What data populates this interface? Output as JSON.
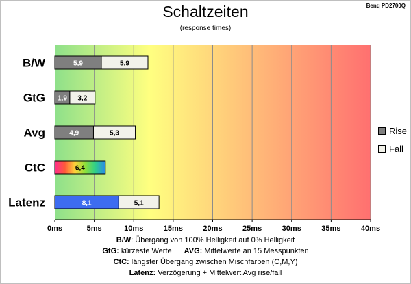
{
  "header": {
    "title": "Schaltzeiten",
    "subtitle": "(response times)",
    "model": "Benq PD2700Q"
  },
  "legend": {
    "rise": "Rise",
    "fall": "Fall"
  },
  "colors": {
    "rise": "#7f7f7f",
    "fall": "#f2f2ea",
    "latenz_rise": "#3d6cf0",
    "gradient_start": "#8ee08a",
    "gradient_mid": "#ffff80",
    "gradient_end": "#ff7070"
  },
  "chart_data": {
    "type": "bar",
    "orientation": "horizontal",
    "stacked": true,
    "categories": [
      "B/W",
      "GtG",
      "Avg",
      "CtC",
      "Latenz"
    ],
    "series": [
      {
        "name": "Rise",
        "values": [
          5.9,
          1.9,
          4.9,
          6.4,
          8.1
        ],
        "labels": [
          "5,9",
          "1,9",
          "4,9",
          "6,4",
          "8,1"
        ]
      },
      {
        "name": "Fall",
        "values": [
          5.9,
          3.2,
          5.3,
          null,
          5.1
        ],
        "labels": [
          "5,9",
          "3,2",
          "5,3",
          "",
          "5,1"
        ]
      }
    ],
    "xlim": [
      0,
      40
    ],
    "xticks": [
      0,
      5,
      10,
      15,
      20,
      25,
      30,
      35,
      40
    ],
    "xtick_labels": [
      "0ms",
      "5ms",
      "10ms",
      "15ms",
      "20ms",
      "25ms",
      "30ms",
      "35ms",
      "40ms"
    ],
    "grid": true,
    "legend_position": "right"
  },
  "notes": [
    {
      "key": "B/W",
      "text": ":  Übergang von 100% Helligkeit auf 0% Helligkeit"
    },
    {
      "key": "GtG:",
      "text": " kürzeste  Werte",
      "key2": "AVG:",
      "text2": " Mittelwerte  an 15 Messpunkten"
    },
    {
      "key": "CtC:",
      "text": " längster Übergang  zwischen Mischfarben  (C,M,Y)"
    },
    {
      "key": "Latenz:",
      "text": " Verzögerung  + Mittelwert Avg rise/fall"
    }
  ]
}
